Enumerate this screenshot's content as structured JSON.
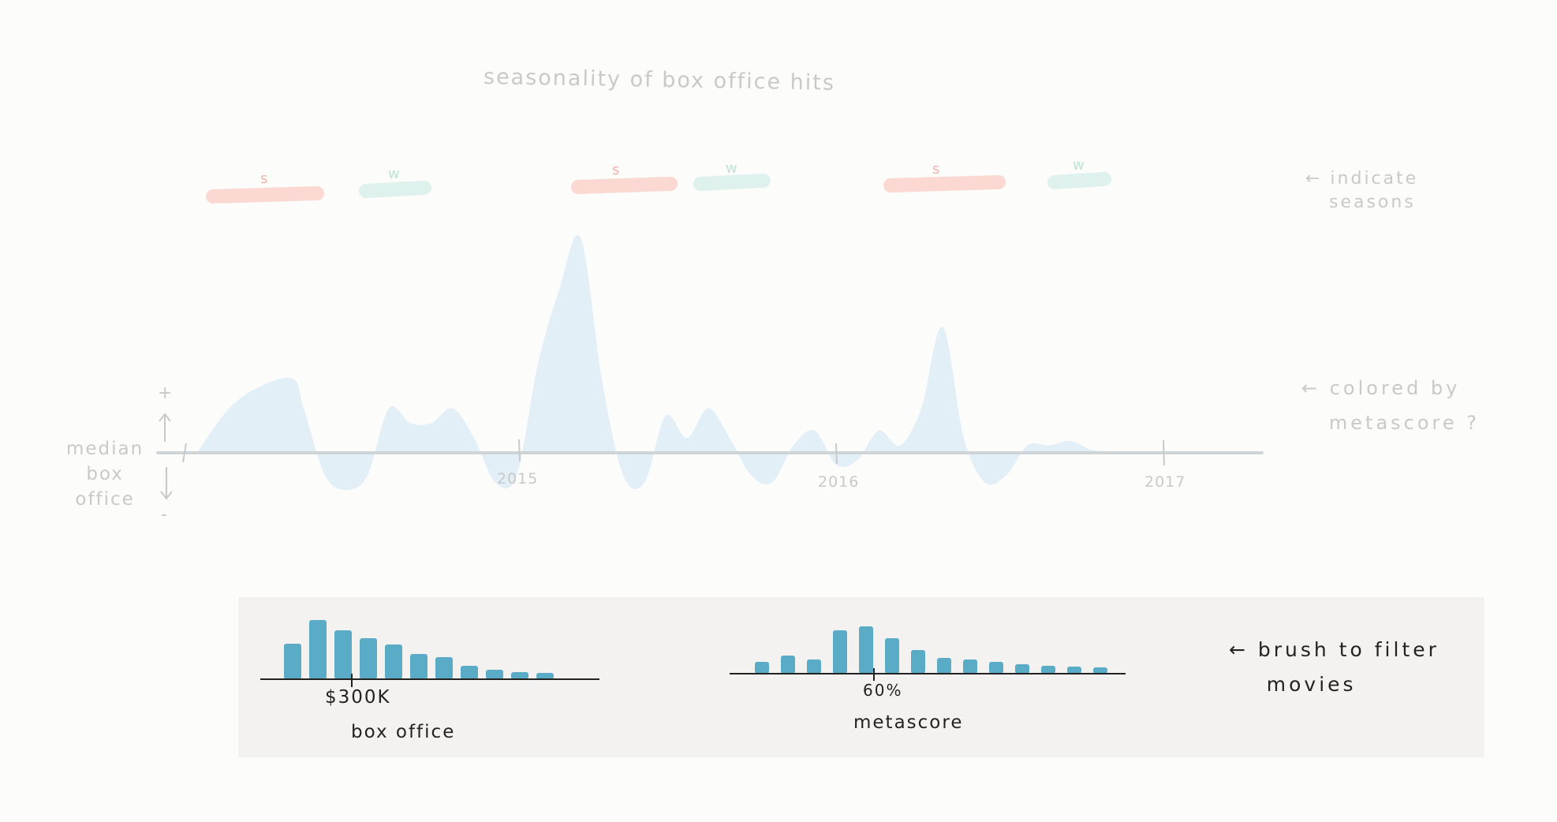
{
  "title": "seasonality of box office hits",
  "annotations": {
    "seasons_note": "← indicate\n   seasons",
    "color_note": "← colored by\n   metascore ?",
    "brush_note": "← brush to filter\n    movies"
  },
  "y_axis": {
    "label": "median\nbox\noffice",
    "plus": "+",
    "minus": "-"
  },
  "seasons": [
    {
      "letter": "s",
      "kind": "summer"
    },
    {
      "letter": "w",
      "kind": "winter"
    },
    {
      "letter": "s",
      "kind": "summer"
    },
    {
      "letter": "w",
      "kind": "winter"
    },
    {
      "letter": "s",
      "kind": "summer"
    },
    {
      "letter": "w",
      "kind": "winter"
    }
  ],
  "colors": {
    "summer": "#fbd9d2",
    "summer_text": "#f4b3a8",
    "winter": "#dff1ec",
    "winter_text": "#bfe3d8",
    "area": "#e2eff6",
    "axis": "#cfd4d6",
    "bar": "#5aabc5",
    "ink": "#222222",
    "faint": "#c9c9c9"
  },
  "chart_data": [
    {
      "type": "area",
      "title": "seasonality of box office hits",
      "ylabel": "median box office",
      "x_ticks": [
        "2015",
        "2016",
        "2017"
      ],
      "x": [
        0,
        0.03,
        0.06,
        0.09,
        0.1,
        0.12,
        0.14,
        0.16,
        0.18,
        0.2,
        0.22,
        0.24,
        0.26,
        0.28,
        0.3,
        0.32,
        0.34,
        0.36,
        0.38,
        0.4,
        0.42,
        0.44,
        0.46,
        0.48,
        0.5,
        0.52,
        0.54,
        0.56,
        0.58,
        0.6,
        0.62,
        0.64,
        0.66,
        0.68,
        0.7,
        0.72,
        0.74,
        0.76,
        0.78,
        0.8,
        0.82,
        0.84,
        0.86,
        0.88,
        0.9,
        0.92,
        0.94,
        0.96,
        0.98,
        1.0
      ],
      "values": [
        0,
        0.3,
        0.45,
        0.5,
        0.3,
        -0.15,
        -0.25,
        -0.15,
        0.3,
        0.2,
        0.2,
        0.3,
        0.1,
        -0.2,
        -0.15,
        0.6,
        1.1,
        1.45,
        0.5,
        -0.15,
        -0.2,
        0.25,
        0.1,
        0.3,
        0.1,
        -0.15,
        -0.2,
        0.05,
        0.15,
        -0.08,
        -0.05,
        0.15,
        0.05,
        0.3,
        0.85,
        0.1,
        -0.2,
        -0.15,
        0.05,
        0.05,
        0.08,
        0.02,
        0.01,
        0,
        0,
        0,
        0,
        0,
        0,
        0
      ],
      "ylim": [
        -0.35,
        1.5
      ]
    },
    {
      "type": "bar",
      "title": "box office",
      "tick_label": "$300K",
      "values": [
        4.5,
        7.5,
        6.2,
        5.2,
        4.4,
        3.2,
        2.8,
        1.7,
        1.2,
        0.9,
        0.8
      ],
      "ylim": [
        0,
        8
      ]
    },
    {
      "type": "bar",
      "title": "metascore",
      "tick_label": "60%",
      "values": [
        1.5,
        2.3,
        1.8,
        5.5,
        6.0,
        4.5,
        3.0,
        2.0,
        1.8,
        1.5,
        1.2,
        1.0,
        0.9,
        0.8
      ],
      "ylim": [
        0,
        8
      ]
    }
  ]
}
